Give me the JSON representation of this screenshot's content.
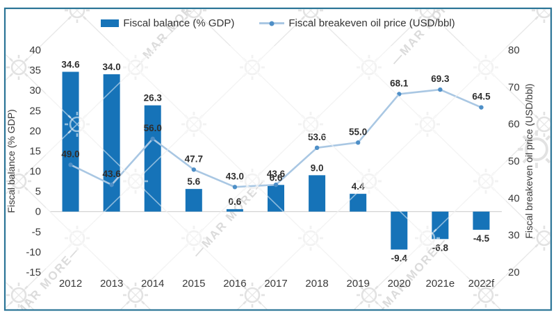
{
  "frame": {
    "border_color": "#2a7496"
  },
  "legend": [
    {
      "label": "Fiscal balance (% GDP)",
      "type": "bar"
    },
    {
      "label": "Fiscal breakeven oil price (USD/bbl)",
      "type": "line"
    }
  ],
  "watermark_text": "MAR MORE",
  "chart_data": {
    "type": "combo-bar-line",
    "categories": [
      "2012",
      "2013",
      "2014",
      "2015",
      "2016",
      "2017",
      "2018",
      "2019",
      "2020",
      "2021e",
      "2022f"
    ],
    "series": [
      {
        "name": "Fiscal balance (% GDP)",
        "type": "bar",
        "axis": "left",
        "color": "#1673b8",
        "values": [
          34.6,
          34.0,
          26.3,
          5.6,
          0.6,
          6.6,
          9.0,
          4.4,
          -9.4,
          -6.8,
          -4.5
        ]
      },
      {
        "name": "Fiscal breakeven oil price (USD/bbl)",
        "type": "line",
        "axis": "right",
        "color": "#a9c7e3",
        "marker_color": "#4e8fc7",
        "values": [
          49.0,
          43.6,
          56.0,
          47.7,
          43.0,
          43.6,
          53.6,
          55.0,
          68.1,
          69.3,
          64.5
        ]
      }
    ],
    "left_axis": {
      "label": "Fiscal balance (% GDP)",
      "min": -15,
      "max": 40,
      "step": 5,
      "ticks": [
        40,
        35,
        30,
        25,
        20,
        15,
        10,
        5,
        0,
        -5,
        -10,
        -15
      ]
    },
    "right_axis": {
      "label": "Fiscal breakeven oil price (USD/bbl)",
      "min": 20,
      "max": 80,
      "step": 10,
      "ticks": [
        80,
        70,
        60,
        50,
        40,
        30,
        20
      ]
    },
    "grid": "zero-line-only",
    "legend_position": "top-center",
    "label_decimals": 1
  }
}
